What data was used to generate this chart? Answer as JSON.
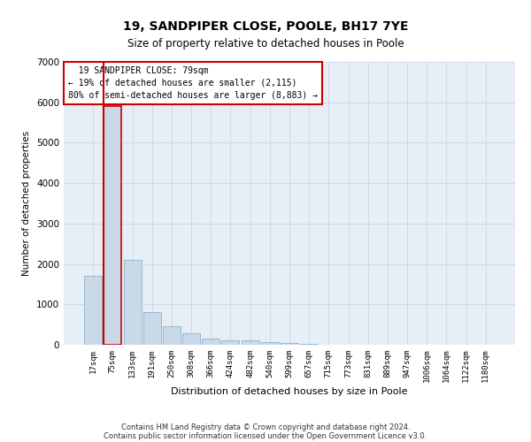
{
  "title": "19, SANDPIPER CLOSE, POOLE, BH17 7YE",
  "subtitle": "Size of property relative to detached houses in Poole",
  "xlabel": "Distribution of detached houses by size in Poole",
  "ylabel": "Number of detached properties",
  "footnote1": "Contains HM Land Registry data © Crown copyright and database right 2024.",
  "footnote2": "Contains public sector information licensed under the Open Government Licence v3.0.",
  "bar_labels": [
    "17sqm",
    "75sqm",
    "133sqm",
    "191sqm",
    "250sqm",
    "308sqm",
    "366sqm",
    "424sqm",
    "482sqm",
    "540sqm",
    "599sqm",
    "657sqm",
    "715sqm",
    "773sqm",
    "831sqm",
    "889sqm",
    "947sqm",
    "1006sqm",
    "1064sqm",
    "1122sqm",
    "1180sqm"
  ],
  "bar_values": [
    1700,
    5900,
    2100,
    800,
    470,
    280,
    150,
    100,
    110,
    60,
    40,
    15,
    8,
    4,
    2,
    1,
    0,
    0,
    0,
    0,
    0
  ],
  "bar_color": "#c9d9e8",
  "bar_edge_color": "#8ab4cc",
  "highlight_bar_index": 1,
  "vline_color": "#cc0000",
  "annotation_text": "  19 SANDPIPER CLOSE: 79sqm\n← 19% of detached houses are smaller (2,115)\n80% of semi-detached houses are larger (8,883) →",
  "annotation_box_color": "#ffffff",
  "annotation_box_edge": "#cc0000",
  "ylim": [
    0,
    7000
  ],
  "yticks": [
    0,
    1000,
    2000,
    3000,
    4000,
    5000,
    6000,
    7000
  ],
  "grid_color": "#d0d8e8",
  "bg_color": "#e8eef5",
  "title_fontsize": 10,
  "subtitle_fontsize": 8.5
}
